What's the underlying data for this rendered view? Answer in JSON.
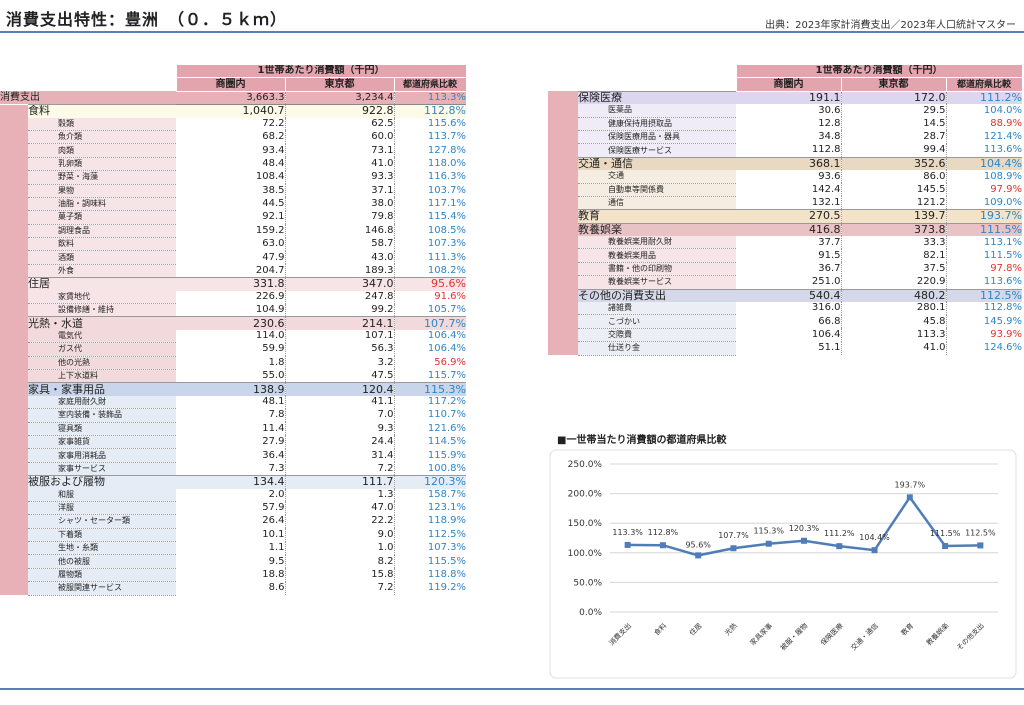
{
  "header": {
    "title": "消費支出特性：豊洲　（０．５ｋｍ）",
    "source": "出典：2023年家計消費支出／2023年人口統計マスター"
  },
  "table_headers": {
    "group": "1世帯あたり消費額（千円）",
    "col1": "商圏内",
    "col2": "東京都",
    "col3": "都道府県比較"
  },
  "colors": {
    "total": "#e8b0b7",
    "food_housing_light": "#f6e4e6",
    "utility": "#f1d9dc",
    "blue": "#c9d5ea",
    "blue_light": "#e6ecf6",
    "food_row": "#fbfbe8",
    "insurance": "#dcd6ee",
    "insurance_light": "#efecf7",
    "transport": "#e9d8c2",
    "transport_light": "#f6ede2",
    "edu": "#f3e3c9",
    "leisure": "#e9c2c6",
    "leisure_light": "#f7e4e6",
    "other": "#d5d8e8",
    "other_light": "#eceef5",
    "up": "#2d86c7",
    "down": "#e0332d",
    "line": "#4f7db8"
  },
  "left_table": [
    {
      "type": "total",
      "label": "消費支出",
      "v1": "3,663.3",
      "v2": "3,234.4",
      "cmp": "113.3%",
      "dir": "up"
    },
    {
      "type": "cat",
      "label": "食料",
      "v1": "1,040.7",
      "v2": "922.8",
      "cmp": "112.8%",
      "dir": "up",
      "color": "#fbfbe8",
      "side": "#f6e4e6"
    },
    {
      "type": "sub",
      "label": "穀類",
      "v1": "72.2",
      "v2": "62.5",
      "cmp": "115.6%",
      "dir": "up",
      "side": "#f6e4e6"
    },
    {
      "type": "sub",
      "label": "魚介類",
      "v1": "68.2",
      "v2": "60.0",
      "cmp": "113.7%",
      "dir": "up",
      "side": "#f6e4e6"
    },
    {
      "type": "sub",
      "label": "肉類",
      "v1": "93.4",
      "v2": "73.1",
      "cmp": "127.8%",
      "dir": "up",
      "side": "#f6e4e6"
    },
    {
      "type": "sub",
      "label": "乳卵類",
      "v1": "48.4",
      "v2": "41.0",
      "cmp": "118.0%",
      "dir": "up",
      "side": "#f6e4e6"
    },
    {
      "type": "sub",
      "label": "野菜・海藻",
      "v1": "108.4",
      "v2": "93.3",
      "cmp": "116.3%",
      "dir": "up",
      "side": "#f6e4e6"
    },
    {
      "type": "sub",
      "label": "果物",
      "v1": "38.5",
      "v2": "37.1",
      "cmp": "103.7%",
      "dir": "up",
      "side": "#f6e4e6"
    },
    {
      "type": "sub",
      "label": "油脂・調味料",
      "v1": "44.5",
      "v2": "38.0",
      "cmp": "117.1%",
      "dir": "up",
      "side": "#f6e4e6"
    },
    {
      "type": "sub",
      "label": "菓子類",
      "v1": "92.1",
      "v2": "79.8",
      "cmp": "115.4%",
      "dir": "up",
      "side": "#f6e4e6"
    },
    {
      "type": "sub",
      "label": "調理食品",
      "v1": "159.2",
      "v2": "146.8",
      "cmp": "108.5%",
      "dir": "up",
      "side": "#f6e4e6"
    },
    {
      "type": "sub",
      "label": "飲料",
      "v1": "63.0",
      "v2": "58.7",
      "cmp": "107.3%",
      "dir": "up",
      "side": "#f6e4e6"
    },
    {
      "type": "sub",
      "label": "酒類",
      "v1": "47.9",
      "v2": "43.0",
      "cmp": "111.3%",
      "dir": "up",
      "side": "#f6e4e6"
    },
    {
      "type": "sub",
      "label": "外食",
      "v1": "204.7",
      "v2": "189.3",
      "cmp": "108.2%",
      "dir": "up",
      "side": "#f6e4e6"
    },
    {
      "type": "cat",
      "label": "住居",
      "v1": "331.8",
      "v2": "347.0",
      "cmp": "95.6%",
      "dir": "down",
      "color": "#f7e4e6",
      "side": "#f6e4e6"
    },
    {
      "type": "sub",
      "label": "家賃地代",
      "v1": "226.9",
      "v2": "247.8",
      "cmp": "91.6%",
      "dir": "down",
      "side": "#f6e4e6"
    },
    {
      "type": "sub",
      "label": "設備修繕・維持",
      "v1": "104.9",
      "v2": "99.2",
      "cmp": "105.7%",
      "dir": "up",
      "side": "#f6e4e6"
    },
    {
      "type": "cat",
      "label": "光熱・水道",
      "v1": "230.6",
      "v2": "214.1",
      "cmp": "107.7%",
      "dir": "up",
      "color": "#f1d9dc",
      "side": "#f1d9dc"
    },
    {
      "type": "sub",
      "label": "電気代",
      "v1": "114.0",
      "v2": "107.1",
      "cmp": "106.4%",
      "dir": "up",
      "side": "#f1d9dc"
    },
    {
      "type": "sub",
      "label": "ガス代",
      "v1": "59.9",
      "v2": "56.3",
      "cmp": "106.4%",
      "dir": "up",
      "side": "#f1d9dc"
    },
    {
      "type": "sub",
      "label": "他の光熱",
      "v1": "1.8",
      "v2": "3.2",
      "cmp": "56.9%",
      "dir": "down",
      "side": "#f1d9dc"
    },
    {
      "type": "sub",
      "label": "上下水道料",
      "v1": "55.0",
      "v2": "47.5",
      "cmp": "115.7%",
      "dir": "up",
      "side": "#f1d9dc"
    },
    {
      "type": "cat",
      "label": "家具・家事用品",
      "v1": "138.9",
      "v2": "120.4",
      "cmp": "115.3%",
      "dir": "up",
      "color": "#c9d5ea",
      "side": "#e6ecf6"
    },
    {
      "type": "sub",
      "label": "家庭用耐久財",
      "v1": "48.1",
      "v2": "41.1",
      "cmp": "117.2%",
      "dir": "up",
      "side": "#e6ecf6"
    },
    {
      "type": "sub",
      "label": "室内装備・装飾品",
      "v1": "7.8",
      "v2": "7.0",
      "cmp": "110.7%",
      "dir": "up",
      "side": "#e6ecf6"
    },
    {
      "type": "sub",
      "label": "寝具類",
      "v1": "11.4",
      "v2": "9.3",
      "cmp": "121.6%",
      "dir": "up",
      "side": "#e6ecf6"
    },
    {
      "type": "sub",
      "label": "家事雑貨",
      "v1": "27.9",
      "v2": "24.4",
      "cmp": "114.5%",
      "dir": "up",
      "side": "#e6ecf6"
    },
    {
      "type": "sub",
      "label": "家事用消耗品",
      "v1": "36.4",
      "v2": "31.4",
      "cmp": "115.9%",
      "dir": "up",
      "side": "#e6ecf6"
    },
    {
      "type": "sub",
      "label": "家事サービス",
      "v1": "7.3",
      "v2": "7.2",
      "cmp": "100.8%",
      "dir": "up",
      "side": "#e6ecf6"
    },
    {
      "type": "cat",
      "label": "被服および履物",
      "v1": "134.4",
      "v2": "111.7",
      "cmp": "120.3%",
      "dir": "up",
      "color": "#e6ecf6",
      "side": "#e6ecf6"
    },
    {
      "type": "sub",
      "label": "和服",
      "v1": "2.0",
      "v2": "1.3",
      "cmp": "158.7%",
      "dir": "up",
      "side": "#e6ecf6"
    },
    {
      "type": "sub",
      "label": "洋服",
      "v1": "57.9",
      "v2": "47.0",
      "cmp": "123.1%",
      "dir": "up",
      "side": "#e6ecf6"
    },
    {
      "type": "sub",
      "label": "シャツ・セーター類",
      "v1": "26.4",
      "v2": "22.2",
      "cmp": "118.9%",
      "dir": "up",
      "side": "#e6ecf6"
    },
    {
      "type": "sub",
      "label": "下着類",
      "v1": "10.1",
      "v2": "9.0",
      "cmp": "112.5%",
      "dir": "up",
      "side": "#e6ecf6"
    },
    {
      "type": "sub",
      "label": "生地・糸類",
      "v1": "1.1",
      "v2": "1.0",
      "cmp": "107.3%",
      "dir": "up",
      "side": "#e6ecf6"
    },
    {
      "type": "sub",
      "label": "他の被服",
      "v1": "9.5",
      "v2": "8.2",
      "cmp": "115.5%",
      "dir": "up",
      "side": "#e6ecf6"
    },
    {
      "type": "sub",
      "label": "履物類",
      "v1": "18.8",
      "v2": "15.8",
      "cmp": "118.8%",
      "dir": "up",
      "side": "#e6ecf6"
    },
    {
      "type": "sub",
      "label": "被服関連サービス",
      "v1": "8.6",
      "v2": "7.2",
      "cmp": "119.2%",
      "dir": "up",
      "side": "#e6ecf6"
    }
  ],
  "right_table": [
    {
      "type": "cat",
      "label": "保険医療",
      "v1": "191.1",
      "v2": "172.0",
      "cmp": "111.2%",
      "dir": "up",
      "color": "#dcd6ee",
      "side": "#efecf7"
    },
    {
      "type": "sub",
      "label": "医薬品",
      "v1": "30.6",
      "v2": "29.5",
      "cmp": "104.0%",
      "dir": "up",
      "side": "#efecf7"
    },
    {
      "type": "sub",
      "label": "健康保持用摂取品",
      "v1": "12.8",
      "v2": "14.5",
      "cmp": "88.9%",
      "dir": "down",
      "side": "#efecf7"
    },
    {
      "type": "sub",
      "label": "保険医療用品・器具",
      "v1": "34.8",
      "v2": "28.7",
      "cmp": "121.4%",
      "dir": "up",
      "side": "#efecf7"
    },
    {
      "type": "sub",
      "label": "保険医療サービス",
      "v1": "112.8",
      "v2": "99.4",
      "cmp": "113.6%",
      "dir": "up",
      "side": "#efecf7"
    },
    {
      "type": "cat",
      "label": "交通・通信",
      "v1": "368.1",
      "v2": "352.6",
      "cmp": "104.4%",
      "dir": "up",
      "color": "#e9d8c2",
      "side": "#f6ede2"
    },
    {
      "type": "sub",
      "label": "交通",
      "v1": "93.6",
      "v2": "86.0",
      "cmp": "108.9%",
      "dir": "up",
      "side": "#f6ede2"
    },
    {
      "type": "sub",
      "label": "自動車等関係費",
      "v1": "142.4",
      "v2": "145.5",
      "cmp": "97.9%",
      "dir": "down",
      "side": "#f6ede2"
    },
    {
      "type": "sub",
      "label": "通信",
      "v1": "132.1",
      "v2": "121.2",
      "cmp": "109.0%",
      "dir": "up",
      "side": "#f6ede2"
    },
    {
      "type": "cat",
      "label": "教育",
      "v1": "270.5",
      "v2": "139.7",
      "cmp": "193.7%",
      "dir": "up",
      "color": "#f3e3c9",
      "side": "#f3e3c9"
    },
    {
      "type": "cat",
      "label": "教養娯楽",
      "v1": "416.8",
      "v2": "373.8",
      "cmp": "111.5%",
      "dir": "up",
      "color": "#e9c2c6",
      "side": "#f7e4e6"
    },
    {
      "type": "sub",
      "label": "教養娯楽用耐久財",
      "v1": "37.7",
      "v2": "33.3",
      "cmp": "113.1%",
      "dir": "up",
      "side": "#f7e4e6"
    },
    {
      "type": "sub",
      "label": "教養娯楽用品",
      "v1": "91.5",
      "v2": "82.1",
      "cmp": "111.5%",
      "dir": "up",
      "side": "#f7e4e6"
    },
    {
      "type": "sub",
      "label": "書籍・他の印刷物",
      "v1": "36.7",
      "v2": "37.5",
      "cmp": "97.8%",
      "dir": "down",
      "side": "#f7e4e6"
    },
    {
      "type": "sub",
      "label": "教養娯楽サービス",
      "v1": "251.0",
      "v2": "220.9",
      "cmp": "113.6%",
      "dir": "up",
      "side": "#f7e4e6"
    },
    {
      "type": "cat",
      "label": "その他の消費支出",
      "v1": "540.4",
      "v2": "480.2",
      "cmp": "112.5%",
      "dir": "up",
      "color": "#d5d8e8",
      "side": "#eceef5"
    },
    {
      "type": "sub",
      "label": "諸雑費",
      "v1": "316.0",
      "v2": "280.1",
      "cmp": "112.8%",
      "dir": "up",
      "side": "#eceef5"
    },
    {
      "type": "sub",
      "label": "こづかい",
      "v1": "66.8",
      "v2": "45.8",
      "cmp": "145.9%",
      "dir": "up",
      "side": "#eceef5"
    },
    {
      "type": "sub",
      "label": "交際費",
      "v1": "106.4",
      "v2": "113.3",
      "cmp": "93.9%",
      "dir": "down",
      "side": "#eceef5"
    },
    {
      "type": "sub",
      "label": "仕送り金",
      "v1": "51.1",
      "v2": "41.0",
      "cmp": "124.6%",
      "dir": "up",
      "side": "#eceef5"
    }
  ],
  "chart_title": "■一世帯当たり消費額の都道府県比較",
  "chart_data": {
    "type": "line",
    "title": "■一世帯当たり消費額の都道府県比較",
    "categories": [
      "消費支出",
      "食料",
      "住居",
      "光熱",
      "家具家事",
      "被服・履物",
      "保険医療",
      "交通・通信",
      "教育",
      "教養娯楽",
      "その他支出"
    ],
    "values": [
      113.3,
      112.8,
      95.6,
      107.7,
      115.3,
      120.3,
      111.2,
      104.4,
      193.7,
      111.5,
      112.5
    ],
    "labels": [
      "113.3%",
      "112.8%",
      "95.6%",
      "107.7%",
      "115.3%",
      "120.3%",
      "111.2%",
      "104.4%",
      "193.7%",
      "111.5%",
      "112.5%"
    ],
    "yticks": [
      "250.0%",
      "200.0%",
      "150.0%",
      "100.0%",
      "50.0%",
      "0.0%"
    ],
    "ylim": [
      0,
      250
    ],
    "grid": true,
    "legend": false
  }
}
